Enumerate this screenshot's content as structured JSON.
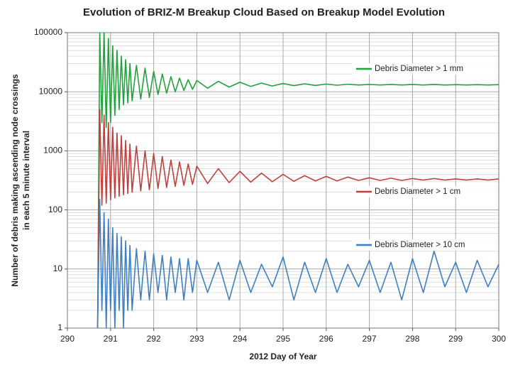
{
  "chart_data": {
    "type": "line",
    "title": "Evolution of BRIZ-M Breakup Cloud Based on Breakup Model Evolution",
    "xlabel": "2012 Day of Year",
    "ylabel": [
      "Number of debris making ascending node crossings",
      "in each 5 minute interval"
    ],
    "log_y": true,
    "grid": true,
    "xlim": [
      290,
      300
    ],
    "xticks": [
      290,
      291,
      292,
      293,
      294,
      295,
      296,
      297,
      298,
      299,
      300
    ],
    "ylim": [
      1,
      100000
    ],
    "yticks": [
      1,
      10,
      100,
      1000,
      10000,
      100000
    ],
    "x": [
      290.7,
      290.75,
      290.8,
      290.85,
      290.9,
      290.95,
      291.0,
      291.05,
      291.1,
      291.15,
      291.2,
      291.25,
      291.3,
      291.35,
      291.4,
      291.45,
      291.5,
      291.6,
      291.7,
      291.8,
      291.9,
      292.0,
      292.1,
      292.2,
      292.3,
      292.4,
      292.5,
      292.6,
      292.7,
      292.8,
      292.9,
      293.0,
      293.25,
      293.5,
      293.75,
      294.0,
      294.25,
      294.5,
      294.75,
      295.0,
      295.25,
      295.5,
      295.75,
      296.0,
      296.25,
      296.5,
      296.75,
      297.0,
      297.25,
      297.5,
      297.75,
      298.0,
      298.25,
      298.5,
      298.75,
      299.0,
      299.25,
      299.5,
      299.75,
      300.0
    ],
    "series": [
      {
        "name": "Debris Diameter > 1 mm",
        "color": "#1fa33a",
        "values": [
          1,
          100000,
          3000,
          100000,
          2500,
          80000,
          3000,
          60000,
          4000,
          50000,
          5000,
          40000,
          6000,
          35000,
          6500,
          30000,
          7000,
          28000,
          7500,
          25000,
          8000,
          22000,
          9000,
          20000,
          9500,
          18000,
          10000,
          17000,
          10500,
          16000,
          11000,
          15500,
          11500,
          15000,
          12000,
          14500,
          12300,
          14000,
          12500,
          13800,
          12700,
          13600,
          12800,
          13500,
          12900,
          13400,
          13000,
          13300,
          13000,
          13300,
          13000,
          13300,
          13000,
          13300,
          13000,
          13200,
          13000,
          13200,
          13000,
          13200
        ]
      },
      {
        "name": "Debris Diameter > 1 cm",
        "color": "#c0403b",
        "values": [
          1,
          5000,
          120,
          4000,
          130,
          3000,
          150,
          2500,
          160,
          2000,
          170,
          1800,
          180,
          1500,
          190,
          1300,
          200,
          1200,
          210,
          1000,
          220,
          900,
          230,
          800,
          240,
          700,
          250,
          650,
          260,
          600,
          270,
          550,
          280,
          500,
          290,
          450,
          295,
          420,
          300,
          400,
          305,
          380,
          310,
          370,
          310,
          360,
          315,
          350,
          315,
          345,
          315,
          340,
          320,
          340,
          320,
          335,
          320,
          335,
          320,
          335
        ]
      },
      {
        "name": "Debris Diameter > 10 cm",
        "color": "#3f7fc4",
        "values": [
          1,
          150,
          2,
          90,
          1,
          70,
          2,
          50,
          1,
          40,
          2,
          35,
          1,
          30,
          2,
          25,
          2,
          22,
          3,
          20,
          3,
          18,
          4,
          17,
          3,
          16,
          4,
          15,
          3,
          15,
          4,
          14,
          4,
          13,
          3,
          14,
          4,
          12,
          5,
          16,
          3,
          13,
          4,
          15,
          4,
          12,
          5,
          14,
          4,
          13,
          3,
          15,
          4,
          20,
          5,
          13,
          4,
          14,
          5,
          12
        ]
      }
    ]
  }
}
